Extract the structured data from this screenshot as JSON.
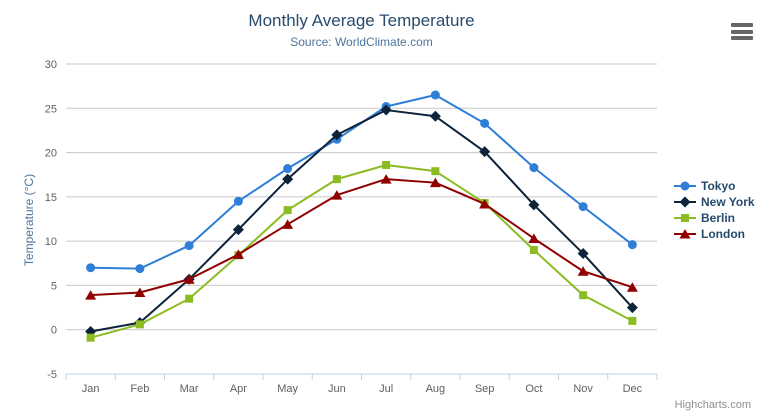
{
  "chart": {
    "credit": "Highcharts.com",
    "export_menu": "chart context menu"
  },
  "chart_data": {
    "type": "line",
    "title": "Monthly Average Temperature",
    "subtitle": "Source: WorldClimate.com",
    "xlabel": "",
    "ylabel": "Temperature (°C)",
    "categories": [
      "Jan",
      "Feb",
      "Mar",
      "Apr",
      "May",
      "Jun",
      "Jul",
      "Aug",
      "Sep",
      "Oct",
      "Nov",
      "Dec"
    ],
    "series": [
      {
        "name": "Tokyo",
        "color": "#2f7ed8",
        "marker": "circle",
        "values": [
          7.0,
          6.9,
          9.5,
          14.5,
          18.2,
          21.5,
          25.2,
          26.5,
          23.3,
          18.3,
          13.9,
          9.6
        ]
      },
      {
        "name": "New York",
        "color": "#0d233a",
        "marker": "diamond",
        "values": [
          -0.2,
          0.8,
          5.7,
          11.3,
          17.0,
          22.0,
          24.8,
          24.1,
          20.1,
          14.1,
          8.6,
          2.5
        ]
      },
      {
        "name": "Berlin",
        "color": "#8bbc21",
        "marker": "square",
        "values": [
          -0.9,
          0.6,
          3.5,
          8.4,
          13.5,
          17.0,
          18.6,
          17.9,
          14.3,
          9.0,
          3.9,
          1.0
        ]
      },
      {
        "name": "London",
        "color": "#910000",
        "marker": "triangle",
        "values": [
          3.9,
          4.2,
          5.7,
          8.5,
          11.9,
          15.2,
          17.0,
          16.6,
          14.2,
          10.3,
          6.6,
          4.8
        ]
      }
    ],
    "ylim": [
      -5,
      30
    ],
    "ytick": 5,
    "grid": true,
    "legend_position": "right",
    "colors": {
      "grid_line": "#c8c8c8",
      "axis_line": "#c0d0e0",
      "tick_label": "#606060",
      "title_text": "#274b6d",
      "subtitle_text": "#4d759e",
      "credit_text": "#909090",
      "menu_icon": "#666666"
    }
  }
}
